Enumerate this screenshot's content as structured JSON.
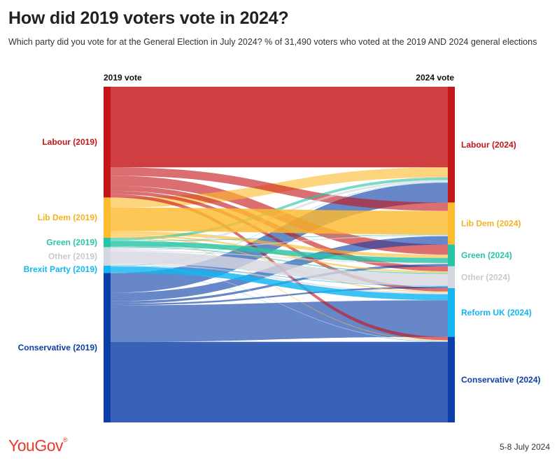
{
  "header": {
    "title": "How did 2019 voters vote in 2024?",
    "subtitle": "Which party did you vote for at the General Election in July 2024? % of 31,490 voters who voted at the 2019 AND 2024 general elections"
  },
  "footer": {
    "brand": "YouGov",
    "brand_mark": "®",
    "date": "5-8 July 2024"
  },
  "chart_data": {
    "type": "sankey",
    "title": "How did 2019 voters vote in 2024?",
    "left_axis_label": "2019 vote",
    "right_axis_label": "2024 vote",
    "left_nodes": [
      {
        "id": "lab19",
        "label": "Labour (2019)",
        "color": "#c41518",
        "value": 33.0
      },
      {
        "id": "ld19",
        "label": "Lib Dem (2019)",
        "color": "#fdbb30",
        "value": 12.0
      },
      {
        "id": "grn19",
        "label": "Green (2019)",
        "color": "#27c4a6",
        "value": 2.8
      },
      {
        "id": "oth19",
        "label": "Other (2019)",
        "color": "#d5d7e0",
        "value": 5.5
      },
      {
        "id": "brx19",
        "label": "Brexit Party (2019)",
        "color": "#12b6f0",
        "value": 2.2
      },
      {
        "id": "con19",
        "label": "Conservative (2019)",
        "color": "#0c3ea8",
        "value": 44.5
      }
    ],
    "right_nodes": [
      {
        "id": "lab24",
        "label": "Labour (2024)",
        "color": "#c41518",
        "value": 34.5
      },
      {
        "id": "ld24",
        "label": "Lib Dem (2024)",
        "color": "#fdbb30",
        "value": 12.5
      },
      {
        "id": "grn24",
        "label": "Green (2024)",
        "color": "#27c4a6",
        "value": 6.5
      },
      {
        "id": "oth24",
        "label": "Other (2024)",
        "color": "#d5d7e0",
        "value": 6.5
      },
      {
        "id": "ref24",
        "label": "Reform UK (2024)",
        "color": "#12b6f0",
        "value": 14.5
      },
      {
        "id": "con24",
        "label": "Conservative (2024)",
        "color": "#0c3ea8",
        "value": 25.5
      }
    ],
    "flows": [
      {
        "from": "lab19",
        "to": "lab24",
        "value": 24.0
      },
      {
        "from": "lab19",
        "to": "ld24",
        "value": 2.5
      },
      {
        "from": "lab19",
        "to": "grn24",
        "value": 3.0
      },
      {
        "from": "lab19",
        "to": "oth24",
        "value": 1.5
      },
      {
        "from": "lab19",
        "to": "ref24",
        "value": 1.0
      },
      {
        "from": "lab19",
        "to": "con24",
        "value": 1.0
      },
      {
        "from": "ld19",
        "to": "lab24",
        "value": 3.0
      },
      {
        "from": "ld19",
        "to": "ld24",
        "value": 7.0
      },
      {
        "from": "ld19",
        "to": "grn24",
        "value": 1.0
      },
      {
        "from": "ld19",
        "to": "oth24",
        "value": 0.5
      },
      {
        "from": "ld19",
        "to": "ref24",
        "value": 0.3
      },
      {
        "from": "ld19",
        "to": "con24",
        "value": 0.2
      },
      {
        "from": "grn19",
        "to": "lab24",
        "value": 0.8
      },
      {
        "from": "grn19",
        "to": "ld24",
        "value": 0.2
      },
      {
        "from": "grn19",
        "to": "grn24",
        "value": 1.5
      },
      {
        "from": "grn19",
        "to": "oth24",
        "value": 0.3
      },
      {
        "from": "oth19",
        "to": "lab24",
        "value": 0.7
      },
      {
        "from": "oth19",
        "to": "ld24",
        "value": 0.3
      },
      {
        "from": "oth19",
        "to": "grn24",
        "value": 0.3
      },
      {
        "from": "oth19",
        "to": "oth24",
        "value": 3.5
      },
      {
        "from": "oth19",
        "to": "ref24",
        "value": 0.5
      },
      {
        "from": "oth19",
        "to": "con24",
        "value": 0.2
      },
      {
        "from": "brx19",
        "to": "lab24",
        "value": 0.1
      },
      {
        "from": "brx19",
        "to": "oth24",
        "value": 0.2
      },
      {
        "from": "brx19",
        "to": "ref24",
        "value": 1.8
      },
      {
        "from": "brx19",
        "to": "con24",
        "value": 0.1
      },
      {
        "from": "con19",
        "to": "lab24",
        "value": 5.9
      },
      {
        "from": "con19",
        "to": "ld24",
        "value": 2.5
      },
      {
        "from": "con19",
        "to": "grn24",
        "value": 0.7
      },
      {
        "from": "con19",
        "to": "oth24",
        "value": 0.5
      },
      {
        "from": "con19",
        "to": "ref24",
        "value": 10.9
      },
      {
        "from": "con19",
        "to": "con24",
        "value": 24.0
      }
    ]
  }
}
